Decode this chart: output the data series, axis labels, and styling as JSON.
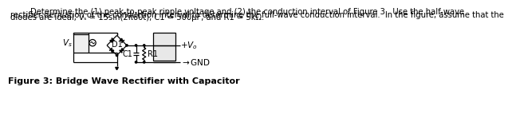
{
  "line1": "        Determine the (1) peak-to-peak ripple voltage and (2) the conduction interval of Figure 3.  Use the half-wave",
  "line2": "rectifier derivation of the conduction interval to determine the full-wave conduction interval.  In the figure, assume that the",
  "line3": "diodes are ideal, vₛ = 15sin(2π60t), C1 = 500μF, and R1 = 5kΩ.",
  "caption": "Figure 3: Bridge Wave Rectifier with Capacitor",
  "bg_color": "#ffffff",
  "line_color": "#000000",
  "gray_color": "#d0d0d0",
  "title_fontsize": 7.2,
  "caption_fontsize": 8.0,
  "lw": 0.9
}
